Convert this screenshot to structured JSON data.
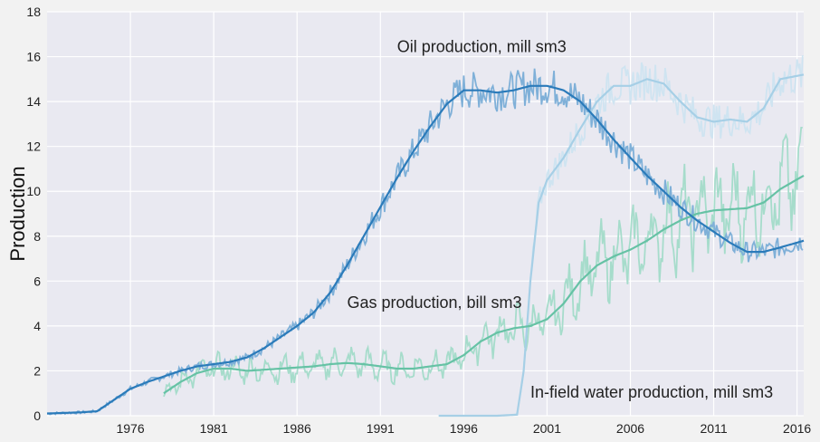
{
  "chart_data": {
    "type": "line",
    "title": "",
    "xlabel": "",
    "ylabel": "Production",
    "xlim": [
      1971,
      2016.4
    ],
    "ylim": [
      0,
      18
    ],
    "grid": true,
    "x_ticks": [
      1976,
      1981,
      1986,
      1991,
      1996,
      2001,
      2006,
      2011,
      2016
    ],
    "y_ticks": [
      0,
      2,
      4,
      6,
      8,
      10,
      12,
      14,
      16,
      18
    ],
    "annotations": [
      {
        "text": "Oil production, mill sm3",
        "x": 1992,
        "y": 16.2
      },
      {
        "text": "Gas production, bill sm3",
        "x": 1989,
        "y": 4.8
      },
      {
        "text": "In-field water production, mill sm3",
        "x": 2000,
        "y": 0.8
      }
    ],
    "series": [
      {
        "key": "oil",
        "color": "#2b7bba",
        "noisy_color": "#7fb0d8",
        "trend": [
          [
            1971,
            0.1
          ],
          [
            1973,
            0.15
          ],
          [
            1974,
            0.2
          ],
          [
            1975,
            0.7
          ],
          [
            1976,
            1.2
          ],
          [
            1977,
            1.5
          ],
          [
            1978,
            1.75
          ],
          [
            1979,
            2.0
          ],
          [
            1980,
            2.2
          ],
          [
            1981,
            2.3
          ],
          [
            1982,
            2.4
          ],
          [
            1983,
            2.6
          ],
          [
            1984,
            3.0
          ],
          [
            1985,
            3.5
          ],
          [
            1986,
            4.0
          ],
          [
            1987,
            4.6
          ],
          [
            1988,
            5.5
          ],
          [
            1989,
            6.7
          ],
          [
            1990,
            8.0
          ],
          [
            1991,
            9.3
          ],
          [
            1992,
            10.6
          ],
          [
            1993,
            11.8
          ],
          [
            1994,
            12.9
          ],
          [
            1995,
            13.9
          ],
          [
            1996,
            14.5
          ],
          [
            1997,
            14.5
          ],
          [
            1998,
            14.4
          ],
          [
            1999,
            14.5
          ],
          [
            2000,
            14.7
          ],
          [
            2001,
            14.7
          ],
          [
            2002,
            14.5
          ],
          [
            2003,
            14.0
          ],
          [
            2004,
            13.2
          ],
          [
            2005,
            12.3
          ],
          [
            2006,
            11.5
          ],
          [
            2007,
            10.7
          ],
          [
            2008,
            10.0
          ],
          [
            2009,
            9.3
          ],
          [
            2010,
            8.7
          ],
          [
            2011,
            8.2
          ],
          [
            2012,
            7.7
          ],
          [
            2013,
            7.3
          ],
          [
            2014,
            7.3
          ],
          [
            2015,
            7.5
          ],
          [
            2016.4,
            7.8
          ]
        ]
      },
      {
        "key": "gas",
        "color": "#66c2a5",
        "noisy_color": "#a6dccb",
        "trend": [
          [
            1978,
            1.0
          ],
          [
            1979,
            1.5
          ],
          [
            1980,
            1.9
          ],
          [
            1981,
            2.1
          ],
          [
            1982,
            2.1
          ],
          [
            1983,
            2.0
          ],
          [
            1984,
            2.05
          ],
          [
            1985,
            2.1
          ],
          [
            1986,
            2.15
          ],
          [
            1987,
            2.2
          ],
          [
            1988,
            2.3
          ],
          [
            1989,
            2.35
          ],
          [
            1990,
            2.3
          ],
          [
            1991,
            2.2
          ],
          [
            1992,
            2.1
          ],
          [
            1993,
            2.1
          ],
          [
            1994,
            2.2
          ],
          [
            1995,
            2.3
          ],
          [
            1996,
            2.7
          ],
          [
            1997,
            3.3
          ],
          [
            1998,
            3.7
          ],
          [
            1999,
            3.9
          ],
          [
            2000,
            4.0
          ],
          [
            2001,
            4.3
          ],
          [
            2002,
            5.0
          ],
          [
            2003,
            6.0
          ],
          [
            2004,
            6.7
          ],
          [
            2005,
            7.1
          ],
          [
            2006,
            7.4
          ],
          [
            2007,
            7.8
          ],
          [
            2008,
            8.3
          ],
          [
            2009,
            8.7
          ],
          [
            2010,
            9.0
          ],
          [
            2011,
            9.15
          ],
          [
            2012,
            9.2
          ],
          [
            2013,
            9.25
          ],
          [
            2014,
            9.5
          ],
          [
            2015,
            10.1
          ],
          [
            2016.4,
            10.7
          ]
        ]
      },
      {
        "key": "water",
        "color": "#a6cfe6",
        "noisy_color": "#cfe4f1",
        "trend": [
          [
            1994.5,
            0.0
          ],
          [
            1998,
            0.0
          ],
          [
            1999.2,
            0.05
          ],
          [
            1999.6,
            2.0
          ],
          [
            2000.0,
            6.0
          ],
          [
            2000.5,
            9.5
          ],
          [
            2001,
            10.5
          ],
          [
            2002,
            11.5
          ],
          [
            2003,
            12.8
          ],
          [
            2004,
            14.0
          ],
          [
            2005,
            14.7
          ],
          [
            2006,
            14.7
          ],
          [
            2007,
            15.0
          ],
          [
            2008,
            14.8
          ],
          [
            2009,
            14.0
          ],
          [
            2010,
            13.3
          ],
          [
            2011,
            13.1
          ],
          [
            2012,
            13.2
          ],
          [
            2013,
            13.1
          ],
          [
            2014,
            13.7
          ],
          [
            2015,
            15.0
          ],
          [
            2016.4,
            15.2
          ]
        ]
      }
    ]
  }
}
